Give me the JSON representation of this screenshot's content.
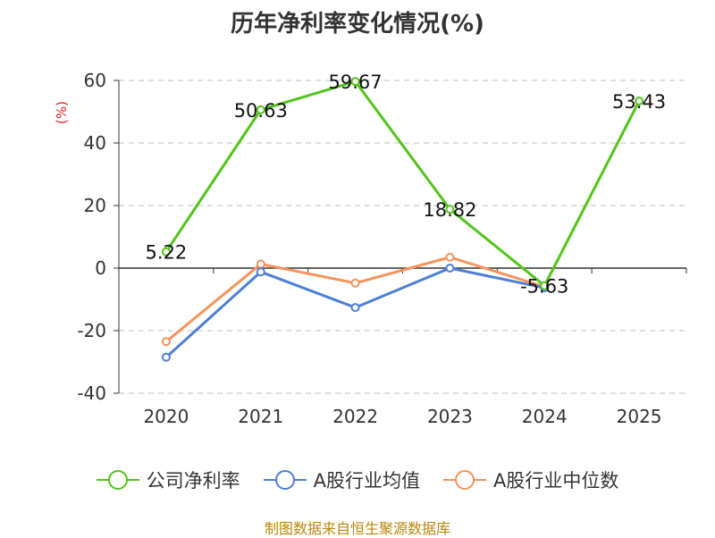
{
  "chart_data": {
    "type": "line",
    "title": "历年净利率变化情况(%)",
    "ylabel": "(%)",
    "xlabel": "",
    "categories": [
      "2020",
      "2021",
      "2022",
      "2023",
      "2024",
      "2025"
    ],
    "ylim": [
      -40,
      60
    ],
    "yticks": [
      60,
      40,
      20,
      0,
      -20,
      -40
    ],
    "grid": true,
    "legend_position": "bottom",
    "series": [
      {
        "name": "公司净利率",
        "color": "#52c41a",
        "values": [
          5.22,
          50.63,
          59.67,
          18.82,
          -5.63,
          53.43
        ],
        "labels": [
          "5.22",
          "50.63",
          "59.67",
          "18.82",
          "-5.63",
          "53.43"
        ]
      },
      {
        "name": "A股行业均值",
        "color": "#4e7fd6",
        "values": [
          -28.5,
          -1.2,
          -12.6,
          0.0,
          -6.3,
          null
        ]
      },
      {
        "name": "A股行业中位数",
        "color": "#f7925c",
        "values": [
          -23.5,
          1.3,
          -4.8,
          3.5,
          -6.0,
          null
        ]
      }
    ]
  },
  "footer": {
    "source": "制图数据来自恒生聚源数据库"
  }
}
